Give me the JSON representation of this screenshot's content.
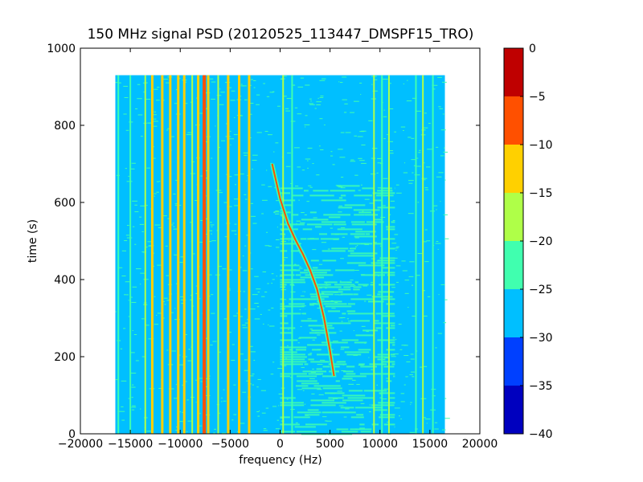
{
  "chart_data": {
    "type": "heatmap",
    "title": "150 MHz signal PSD (20120525_113447_DMSPF15_TRO)",
    "xlabel": "frequency (Hz)",
    "ylabel": "time (s)",
    "xlim": [
      -20000,
      20000
    ],
    "ylim": [
      0,
      1000
    ],
    "xticks": [
      -20000,
      -15000,
      -10000,
      -5000,
      0,
      5000,
      10000,
      15000,
      20000
    ],
    "xtick_labels": [
      "−20000",
      "−15000",
      "−10000",
      "−5000",
      "0",
      "5000",
      "10000",
      "15000",
      "20000"
    ],
    "yticks": [
      0,
      200,
      400,
      600,
      800,
      1000
    ],
    "ytick_labels": [
      "0",
      "200",
      "400",
      "600",
      "800",
      "1000"
    ],
    "data_extent": {
      "freq_min": -16500,
      "freq_max": 16500,
      "time_min": 0,
      "time_max": 930
    },
    "background_level": -27.5,
    "noisy_region": {
      "freq_min": 0,
      "freq_max": 11500,
      "time_min": 0,
      "time_max": 645,
      "level": -25
    },
    "doppler_trace": {
      "points": [
        {
          "f": -800,
          "t": 700
        },
        {
          "f": 0,
          "t": 610
        },
        {
          "f": 800,
          "t": 545
        },
        {
          "f": 1500,
          "t": 505
        },
        {
          "f": 2300,
          "t": 465
        },
        {
          "f": 3000,
          "t": 425
        },
        {
          "f": 3700,
          "t": 375
        },
        {
          "f": 4400,
          "t": 300
        },
        {
          "f": 5000,
          "t": 215
        },
        {
          "f": 5400,
          "t": 150
        }
      ],
      "level": -7
    },
    "vertical_lines": [
      {
        "f": -16200,
        "level": -22
      },
      {
        "f": -15000,
        "level": -22
      },
      {
        "f": -13500,
        "level": -18
      },
      {
        "f": -12800,
        "level": -15
      },
      {
        "f": -11800,
        "level": -12
      },
      {
        "f": -11000,
        "level": -15
      },
      {
        "f": -10200,
        "level": -12
      },
      {
        "f": -9600,
        "level": -15
      },
      {
        "f": -8800,
        "level": -18
      },
      {
        "f": -8200,
        "level": -12
      },
      {
        "f": -7600,
        "level": -6
      },
      {
        "f": -7200,
        "level": -12
      },
      {
        "f": -6200,
        "level": -18
      },
      {
        "f": -5200,
        "level": -15
      },
      {
        "f": -4100,
        "level": -15
      },
      {
        "f": -3100,
        "level": -12
      },
      {
        "f": 300,
        "level": -20
      },
      {
        "f": 1200,
        "level": -22
      },
      {
        "f": 9400,
        "level": -20
      },
      {
        "f": 10200,
        "level": -22
      },
      {
        "f": 10900,
        "level": -20
      },
      {
        "f": 13600,
        "level": -22
      },
      {
        "f": 14300,
        "level": -20
      },
      {
        "f": 15300,
        "level": -22
      }
    ],
    "colorbar": {
      "levels": [
        -40,
        -35,
        -30,
        -25,
        -20,
        -15,
        -10,
        -5,
        0
      ],
      "tick_labels": [
        "−40",
        "−35",
        "−30",
        "−25",
        "−20",
        "−15",
        "−10",
        "−5",
        "0"
      ],
      "colors": [
        "#0000bf",
        "#0040ff",
        "#00bfff",
        "#40ffaf",
        "#afff48",
        "#ffd000",
        "#ff5000",
        "#bf0000"
      ]
    }
  }
}
